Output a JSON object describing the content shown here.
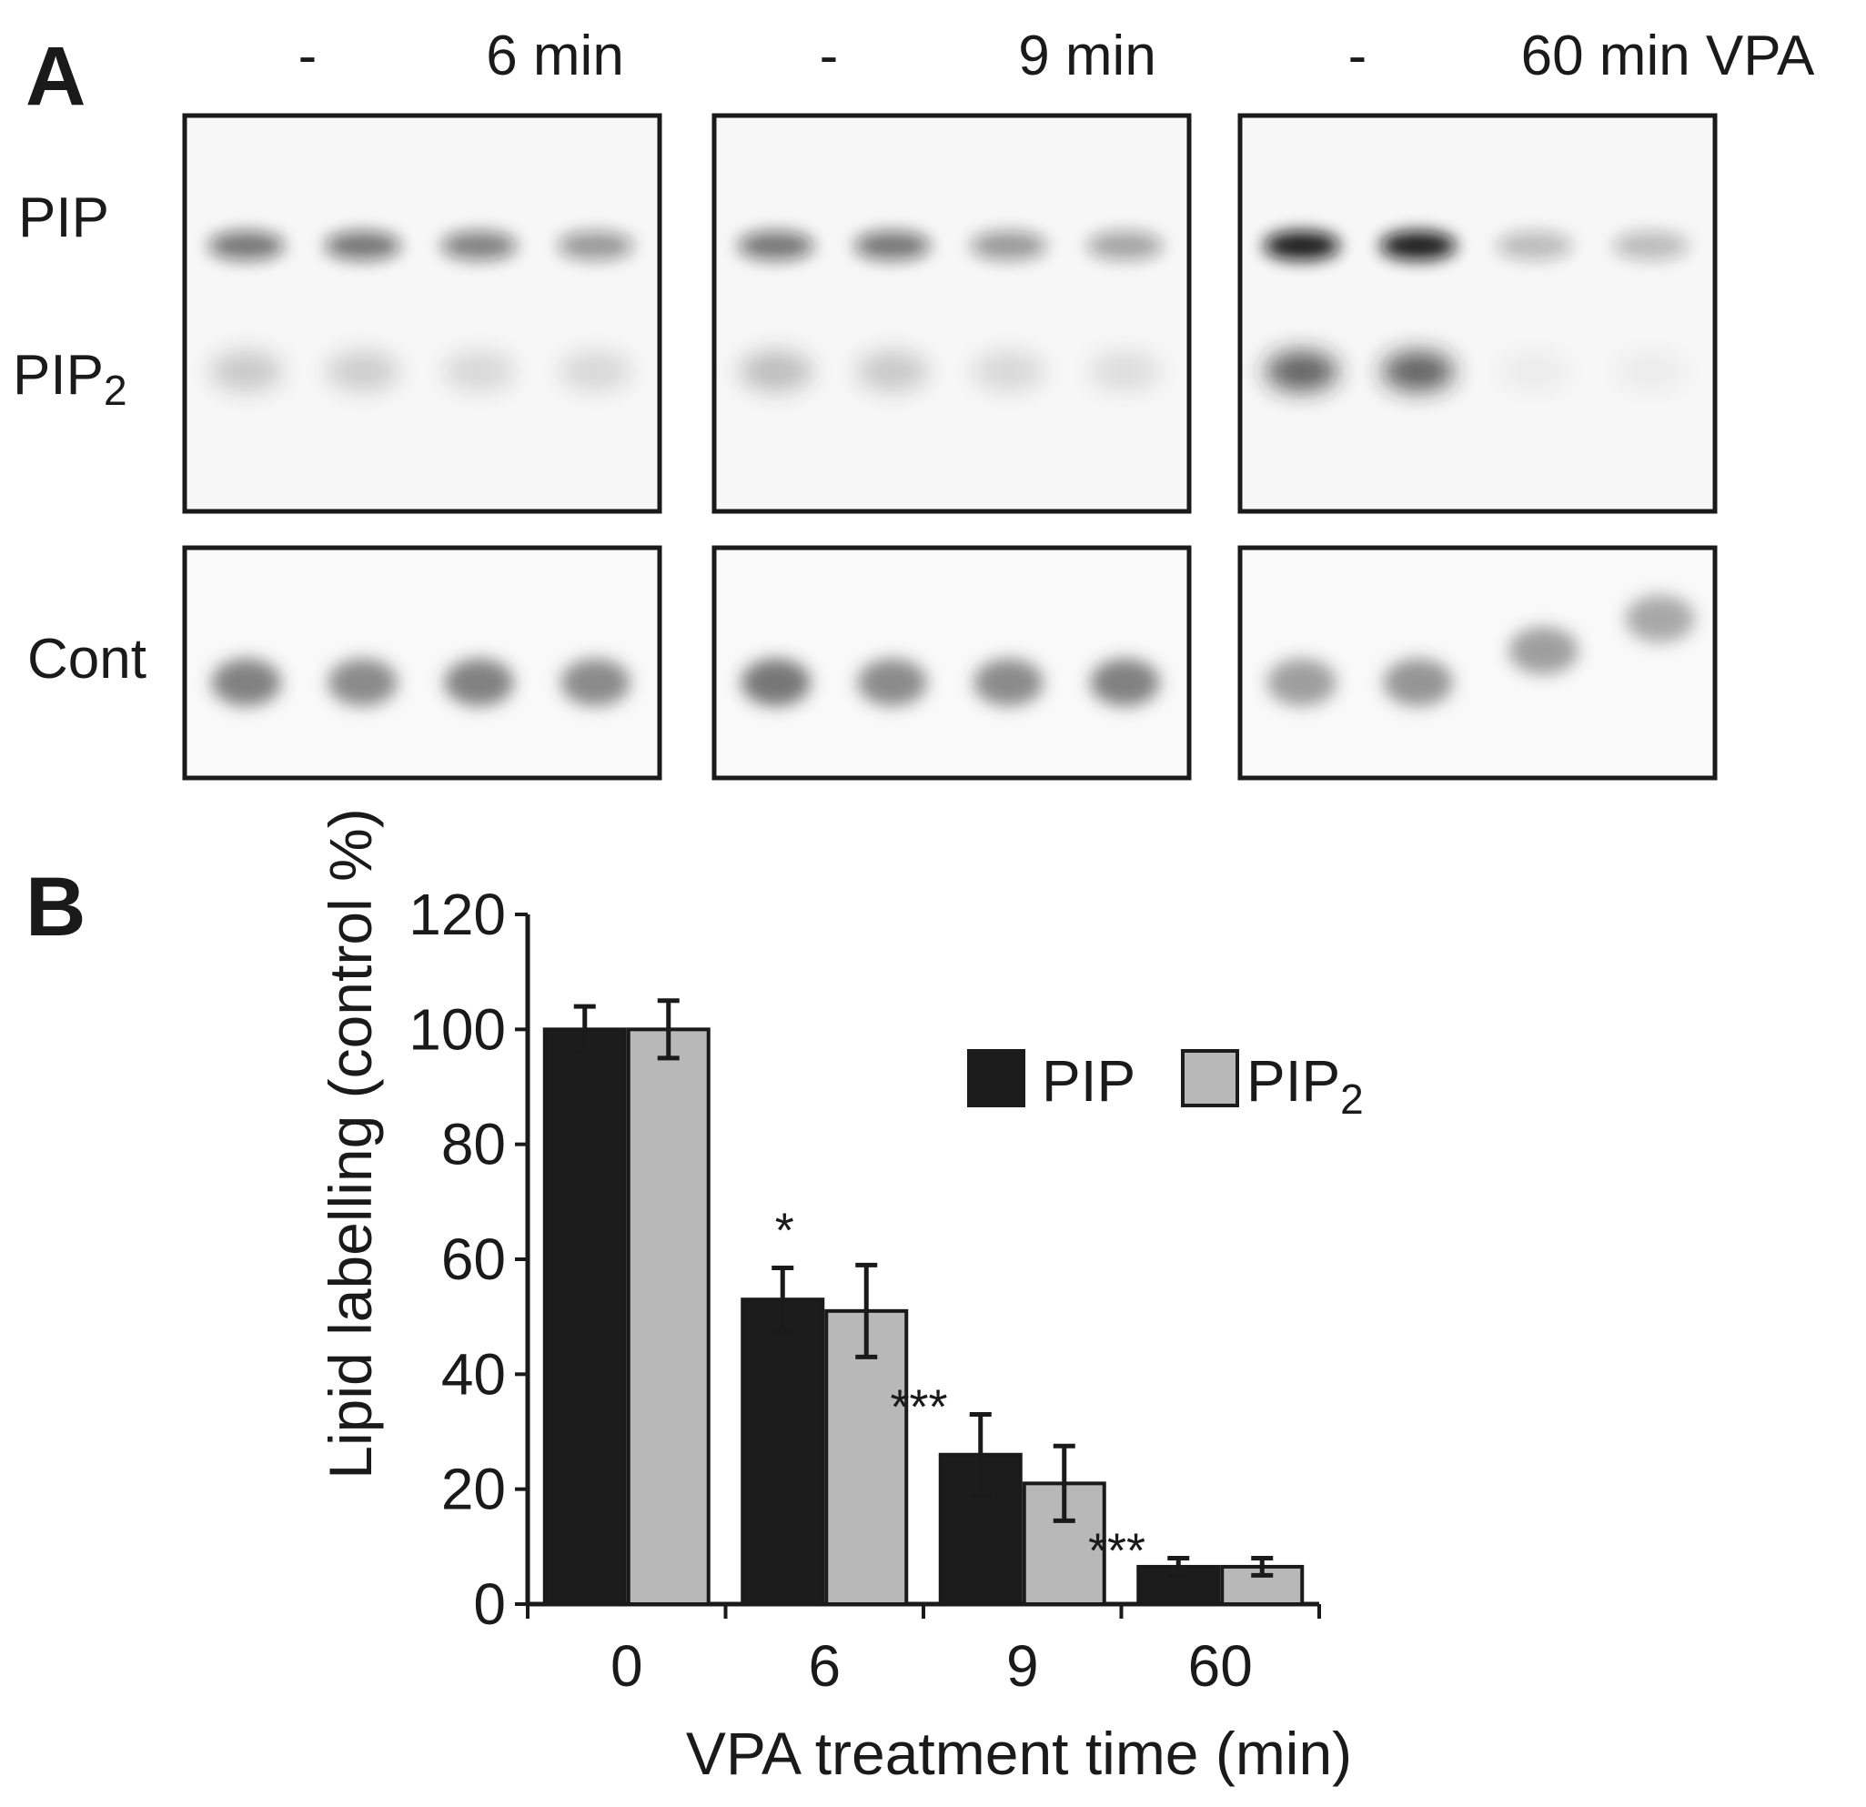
{
  "panel_a": {
    "letter": "A",
    "groups": [
      {
        "control_label": "-",
        "treat_label": "6 min"
      },
      {
        "control_label": "-",
        "treat_label": "9 min"
      },
      {
        "control_label": "-",
        "treat_label": "60 min VPA"
      }
    ],
    "row_labels": {
      "pip": "PIP",
      "pip2_main": "PIP",
      "pip2_sub": "2",
      "cont": "Cont"
    },
    "band_intensity": {
      "pip": [
        [
          0.55,
          0.55,
          0.5,
          0.4
        ],
        [
          0.55,
          0.55,
          0.4,
          0.35
        ],
        [
          0.95,
          0.95,
          0.25,
          0.25
        ]
      ],
      "pip2": [
        [
          0.22,
          0.2,
          0.15,
          0.15
        ],
        [
          0.28,
          0.22,
          0.15,
          0.12
        ],
        [
          0.72,
          0.72,
          0.05,
          0.05
        ]
      ],
      "cont": [
        [
          0.6,
          0.55,
          0.6,
          0.55
        ],
        [
          0.65,
          0.55,
          0.55,
          0.6
        ],
        [
          0.45,
          0.5,
          0.45,
          0.4
        ]
      ]
    }
  },
  "panel_b": {
    "letter": "B"
  },
  "chart_data": {
    "type": "bar",
    "categories": [
      "0",
      "6",
      "9",
      "60"
    ],
    "series": [
      {
        "name": "PIP",
        "color": "#1c1c1c",
        "values": [
          100,
          53,
          26,
          6.5
        ],
        "errors": [
          4,
          5.5,
          7,
          1.5
        ]
      },
      {
        "name": "PIP",
        "name_sub": "2",
        "color": "#b8b8b8",
        "values": [
          100,
          51,
          21,
          6.5
        ],
        "errors": [
          5,
          8,
          6.5,
          1.5
        ]
      }
    ],
    "ylim": [
      0,
      120
    ],
    "yticks": [
      "0",
      "20",
      "40",
      "60",
      "80",
      "100",
      "120"
    ],
    "ylabel": "Lipid labelling (control %)",
    "xlabel": "VPA treatment time (min)",
    "significance": [
      "",
      "*",
      "***",
      "***"
    ],
    "legend_position": "top-right"
  }
}
